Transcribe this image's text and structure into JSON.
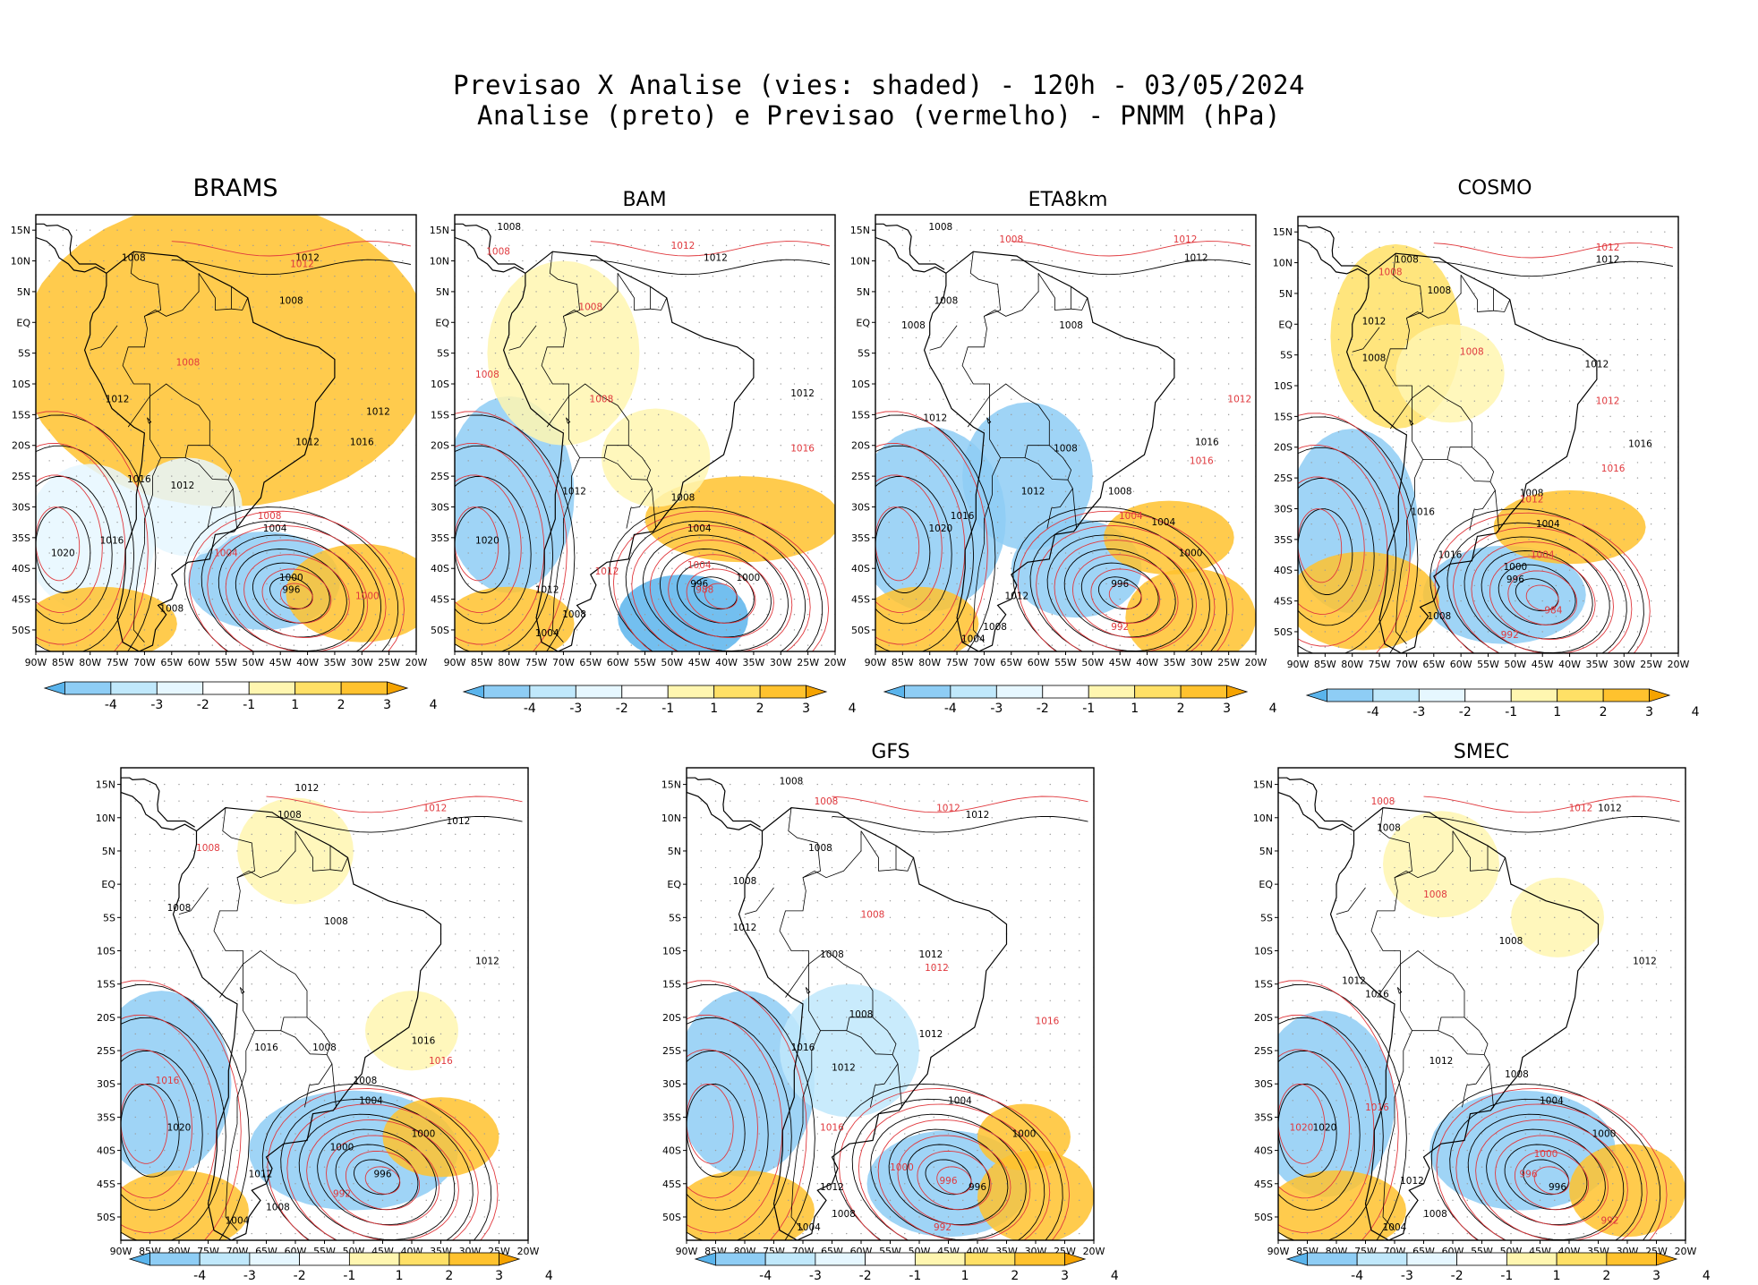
{
  "title": {
    "line1": "Previsao X Analise (vies: shaded) - 120h - 03/05/2024",
    "line2": "Analise (preto) e Previsao (vermelho) - PNMM (hPa)"
  },
  "lat_labels": [
    "15N",
    "10N",
    "5N",
    "EQ",
    "5S",
    "10S",
    "15S",
    "20S",
    "25S",
    "30S",
    "35S",
    "40S",
    "45S",
    "50S"
  ],
  "lon_labels": [
    "90W",
    "85W",
    "80W",
    "75W",
    "70W",
    "65W",
    "60W",
    "55W",
    "50W",
    "45W",
    "40W",
    "35W",
    "30W",
    "25W",
    "20W"
  ],
  "colorbar": {
    "labels": [
      "-4",
      "-3",
      "-2",
      "-1",
      "1",
      "2",
      "3",
      "4"
    ],
    "colors": [
      "#5ab4ec",
      "#8ecdf5",
      "#c0e8fb",
      "#e6f7ff",
      "#ffffff",
      "#fff6b0",
      "#ffe066",
      "#ffc22e",
      "#f5a300"
    ]
  },
  "colors": {
    "analysis": "#000000",
    "forecast": "#e0393e"
  },
  "panels": [
    {
      "model": "BRAMS",
      "labels": [
        {
          "text": "1012",
          "lat": 10,
          "lon": -40,
          "c": "k"
        },
        {
          "text": "1012",
          "lat": 9,
          "lon": -41,
          "c": "r"
        },
        {
          "text": "1008",
          "lat": 10,
          "lon": -72,
          "c": "k"
        },
        {
          "text": "1008",
          "lat": 3,
          "lon": -43,
          "c": "k"
        },
        {
          "text": "1008",
          "lat": -7,
          "lon": -62,
          "c": "r"
        },
        {
          "text": "1012",
          "lat": -13,
          "lon": -75,
          "c": "k"
        },
        {
          "text": "1012",
          "lat": -20,
          "lon": -40,
          "c": "k"
        },
        {
          "text": "1012",
          "lat": -15,
          "lon": -27,
          "c": "k"
        },
        {
          "text": "1016",
          "lat": -20,
          "lon": -30,
          "c": "k"
        },
        {
          "text": "1016",
          "lat": -26,
          "lon": -71,
          "c": "k"
        },
        {
          "text": "1012",
          "lat": -27,
          "lon": -63,
          "c": "k"
        },
        {
          "text": "1008",
          "lat": -32,
          "lon": -47,
          "c": "r"
        },
        {
          "text": "1004",
          "lat": -34,
          "lon": -46,
          "c": "k"
        },
        {
          "text": "1004",
          "lat": -38,
          "lon": -55,
          "c": "r"
        },
        {
          "text": "1020",
          "lat": -38,
          "lon": -85,
          "c": "k"
        },
        {
          "text": "1016",
          "lat": -36,
          "lon": -76,
          "c": "k"
        },
        {
          "text": "1000",
          "lat": -42,
          "lon": -43,
          "c": "k"
        },
        {
          "text": "996",
          "lat": -44,
          "lon": -43,
          "c": "k"
        },
        {
          "text": "1000",
          "lat": -45,
          "lon": -29,
          "c": "r"
        },
        {
          "text": "1008",
          "lat": -47,
          "lon": -65,
          "c": "k"
        }
      ]
    },
    {
      "model": "BAM",
      "labels": [
        {
          "text": "1008",
          "lat": 15,
          "lon": -80,
          "c": "k"
        },
        {
          "text": "1008",
          "lat": 11,
          "lon": -82,
          "c": "r"
        },
        {
          "text": "1012",
          "lat": 12,
          "lon": -48,
          "c": "r"
        },
        {
          "text": "1012",
          "lat": 10,
          "lon": -42,
          "c": "k"
        },
        {
          "text": "1008",
          "lat": 2,
          "lon": -65,
          "c": "r"
        },
        {
          "text": "1008",
          "lat": -9,
          "lon": -84,
          "c": "r"
        },
        {
          "text": "1008",
          "lat": -13,
          "lon": -63,
          "c": "r"
        },
        {
          "text": "1012",
          "lat": -12,
          "lon": -26,
          "c": "k"
        },
        {
          "text": "1016",
          "lat": -21,
          "lon": -26,
          "c": "r"
        },
        {
          "text": "1012",
          "lat": -28,
          "lon": -68,
          "c": "k"
        },
        {
          "text": "1008",
          "lat": -29,
          "lon": -48,
          "c": "k"
        },
        {
          "text": "1004",
          "lat": -34,
          "lon": -45,
          "c": "k"
        },
        {
          "text": "1004",
          "lat": -40,
          "lon": -45,
          "c": "r"
        },
        {
          "text": "1020",
          "lat": -36,
          "lon": -84,
          "c": "k"
        },
        {
          "text": "1012",
          "lat": -41,
          "lon": -62,
          "c": "r"
        },
        {
          "text": "1012",
          "lat": -44,
          "lon": -73,
          "c": "k"
        },
        {
          "text": "1000",
          "lat": -42,
          "lon": -36,
          "c": "k"
        },
        {
          "text": "996",
          "lat": -43,
          "lon": -45,
          "c": "k"
        },
        {
          "text": "988",
          "lat": -44,
          "lon": -44,
          "c": "r"
        },
        {
          "text": "1008",
          "lat": -48,
          "lon": -68,
          "c": "k"
        },
        {
          "text": "1004",
          "lat": -51,
          "lon": -73,
          "c": "k"
        }
      ]
    },
    {
      "model": "ETA8km",
      "labels": [
        {
          "text": "1008",
          "lat": 15,
          "lon": -78,
          "c": "k"
        },
        {
          "text": "1008",
          "lat": 13,
          "lon": -65,
          "c": "r"
        },
        {
          "text": "1012",
          "lat": 13,
          "lon": -33,
          "c": "r"
        },
        {
          "text": "1012",
          "lat": 10,
          "lon": -31,
          "c": "k"
        },
        {
          "text": "1008",
          "lat": 3,
          "lon": -77,
          "c": "k"
        },
        {
          "text": "1008",
          "lat": -1,
          "lon": -83,
          "c": "k"
        },
        {
          "text": "1008",
          "lat": -1,
          "lon": -54,
          "c": "k"
        },
        {
          "text": "1012",
          "lat": -13,
          "lon": -23,
          "c": "r"
        },
        {
          "text": "1012",
          "lat": -16,
          "lon": -79,
          "c": "k"
        },
        {
          "text": "1008",
          "lat": -21,
          "lon": -55,
          "c": "k"
        },
        {
          "text": "1016",
          "lat": -20,
          "lon": -29,
          "c": "k"
        },
        {
          "text": "1016",
          "lat": -23,
          "lon": -30,
          "c": "r"
        },
        {
          "text": "1012",
          "lat": -28,
          "lon": -61,
          "c": "k"
        },
        {
          "text": "1008",
          "lat": -28,
          "lon": -45,
          "c": "k"
        },
        {
          "text": "1004",
          "lat": -32,
          "lon": -43,
          "c": "r"
        },
        {
          "text": "1004",
          "lat": -33,
          "lon": -37,
          "c": "k"
        },
        {
          "text": "1016",
          "lat": -32,
          "lon": -74,
          "c": "k"
        },
        {
          "text": "1020",
          "lat": -34,
          "lon": -78,
          "c": "k"
        },
        {
          "text": "1000",
          "lat": -38,
          "lon": -32,
          "c": "k"
        },
        {
          "text": "996",
          "lat": -43,
          "lon": -45,
          "c": "k"
        },
        {
          "text": "1012",
          "lat": -45,
          "lon": -64,
          "c": "k"
        },
        {
          "text": "1008",
          "lat": -50,
          "lon": -68,
          "c": "k"
        },
        {
          "text": "1004",
          "lat": -52,
          "lon": -72,
          "c": "k"
        },
        {
          "text": "992",
          "lat": -50,
          "lon": -45,
          "c": "r"
        }
      ]
    },
    {
      "model": "COSMO",
      "labels": [
        {
          "text": "1012",
          "lat": 12,
          "lon": -33,
          "c": "r"
        },
        {
          "text": "1012",
          "lat": 10,
          "lon": -33,
          "c": "k"
        },
        {
          "text": "1008",
          "lat": 10,
          "lon": -70,
          "c": "k"
        },
        {
          "text": "1008",
          "lat": 8,
          "lon": -73,
          "c": "r"
        },
        {
          "text": "1008",
          "lat": 5,
          "lon": -64,
          "c": "k"
        },
        {
          "text": "1012",
          "lat": 0,
          "lon": -76,
          "c": "k"
        },
        {
          "text": "1008",
          "lat": -5,
          "lon": -58,
          "c": "r"
        },
        {
          "text": "1008",
          "lat": -6,
          "lon": -76,
          "c": "k"
        },
        {
          "text": "1012",
          "lat": -7,
          "lon": -35,
          "c": "k"
        },
        {
          "text": "1012",
          "lat": -13,
          "lon": -33,
          "c": "r"
        },
        {
          "text": "1016",
          "lat": -20,
          "lon": -27,
          "c": "k"
        },
        {
          "text": "1016",
          "lat": -24,
          "lon": -32,
          "c": "r"
        },
        {
          "text": "1016",
          "lat": -31,
          "lon": -67,
          "c": "k"
        },
        {
          "text": "1008",
          "lat": -28,
          "lon": -47,
          "c": "k"
        },
        {
          "text": "1012",
          "lat": -29,
          "lon": -47,
          "c": "r"
        },
        {
          "text": "1004",
          "lat": -33,
          "lon": -44,
          "c": "k"
        },
        {
          "text": "1004",
          "lat": -38,
          "lon": -45,
          "c": "r"
        },
        {
          "text": "1016",
          "lat": -38,
          "lon": -62,
          "c": "k"
        },
        {
          "text": "1000",
          "lat": -40,
          "lon": -50,
          "c": "k"
        },
        {
          "text": "996",
          "lat": -42,
          "lon": -50,
          "c": "k"
        },
        {
          "text": "984",
          "lat": -47,
          "lon": -43,
          "c": "r"
        },
        {
          "text": "1008",
          "lat": -48,
          "lon": -64,
          "c": "k"
        },
        {
          "text": "992",
          "lat": -51,
          "lon": -51,
          "c": "r"
        }
      ]
    },
    {
      "model": "",
      "labels": [
        {
          "text": "1012",
          "lat": 14,
          "lon": -58,
          "c": "k"
        },
        {
          "text": "1008",
          "lat": 10,
          "lon": -61,
          "c": "k"
        },
        {
          "text": "1008",
          "lat": 5,
          "lon": -75,
          "c": "r"
        },
        {
          "text": "1012",
          "lat": 11,
          "lon": -36,
          "c": "r"
        },
        {
          "text": "1012",
          "lat": 9,
          "lon": -32,
          "c": "k"
        },
        {
          "text": "1008",
          "lat": -4,
          "lon": -80,
          "c": "k"
        },
        {
          "text": "1008",
          "lat": -6,
          "lon": -53,
          "c": "k"
        },
        {
          "text": "1012",
          "lat": -12,
          "lon": -27,
          "c": "k"
        },
        {
          "text": "1016",
          "lat": -24,
          "lon": -38,
          "c": "k"
        },
        {
          "text": "1016",
          "lat": -27,
          "lon": -35,
          "c": "r"
        },
        {
          "text": "1008",
          "lat": -25,
          "lon": -55,
          "c": "k"
        },
        {
          "text": "1016",
          "lat": -25,
          "lon": -65,
          "c": "k"
        },
        {
          "text": "1008",
          "lat": -30,
          "lon": -48,
          "c": "k"
        },
        {
          "text": "1004",
          "lat": -33,
          "lon": -47,
          "c": "k"
        },
        {
          "text": "1016",
          "lat": -30,
          "lon": -82,
          "c": "r"
        },
        {
          "text": "1020",
          "lat": -37,
          "lon": -80,
          "c": "k"
        },
        {
          "text": "1000",
          "lat": -38,
          "lon": -38,
          "c": "k"
        },
        {
          "text": "1000",
          "lat": -40,
          "lon": -52,
          "c": "k"
        },
        {
          "text": "996",
          "lat": -44,
          "lon": -45,
          "c": "k"
        },
        {
          "text": "992",
          "lat": -47,
          "lon": -52,
          "c": "r"
        },
        {
          "text": "1012",
          "lat": -44,
          "lon": -66,
          "c": "k"
        },
        {
          "text": "1008",
          "lat": -49,
          "lon": -63,
          "c": "k"
        },
        {
          "text": "1004",
          "lat": -51,
          "lon": -70,
          "c": "k"
        }
      ]
    },
    {
      "model": "GFS",
      "labels": [
        {
          "text": "1008",
          "lat": 15,
          "lon": -72,
          "c": "k"
        },
        {
          "text": "1008",
          "lat": 12,
          "lon": -66,
          "c": "r"
        },
        {
          "text": "1012",
          "lat": 11,
          "lon": -45,
          "c": "r"
        },
        {
          "text": "1012",
          "lat": 10,
          "lon": -40,
          "c": "k"
        },
        {
          "text": "1008",
          "lat": 5,
          "lon": -67,
          "c": "k"
        },
        {
          "text": "1008",
          "lat": 0,
          "lon": -80,
          "c": "k"
        },
        {
          "text": "1008",
          "lat": -5,
          "lon": -58,
          "c": "r"
        },
        {
          "text": "1012",
          "lat": -7,
          "lon": -80,
          "c": "k"
        },
        {
          "text": "1008",
          "lat": -11,
          "lon": -65,
          "c": "k"
        },
        {
          "text": "1012",
          "lat": -11,
          "lon": -48,
          "c": "k"
        },
        {
          "text": "1012",
          "lat": -13,
          "lon": -47,
          "c": "r"
        },
        {
          "text": "1016",
          "lat": -21,
          "lon": -28,
          "c": "r"
        },
        {
          "text": "1008",
          "lat": -20,
          "lon": -60,
          "c": "k"
        },
        {
          "text": "1012",
          "lat": -23,
          "lon": -48,
          "c": "k"
        },
        {
          "text": "1016",
          "lat": -25,
          "lon": -70,
          "c": "k"
        },
        {
          "text": "1012",
          "lat": -28,
          "lon": -63,
          "c": "k"
        },
        {
          "text": "1004",
          "lat": -33,
          "lon": -43,
          "c": "k"
        },
        {
          "text": "1016",
          "lat": -37,
          "lon": -65,
          "c": "r"
        },
        {
          "text": "1000",
          "lat": -38,
          "lon": -32,
          "c": "k"
        },
        {
          "text": "1000",
          "lat": -43,
          "lon": -53,
          "c": "r"
        },
        {
          "text": "996",
          "lat": -45,
          "lon": -45,
          "c": "r"
        },
        {
          "text": "996",
          "lat": -46,
          "lon": -40,
          "c": "k"
        },
        {
          "text": "1012",
          "lat": -46,
          "lon": -65,
          "c": "k"
        },
        {
          "text": "1008",
          "lat": -50,
          "lon": -63,
          "c": "k"
        },
        {
          "text": "1004",
          "lat": -52,
          "lon": -69,
          "c": "k"
        },
        {
          "text": "992",
          "lat": -52,
          "lon": -46,
          "c": "r"
        }
      ]
    },
    {
      "model": "SMEC",
      "labels": [
        {
          "text": "1012",
          "lat": 11,
          "lon": -38,
          "c": "r"
        },
        {
          "text": "1012",
          "lat": 11,
          "lon": -33,
          "c": "k"
        },
        {
          "text": "1008",
          "lat": 12,
          "lon": -72,
          "c": "r"
        },
        {
          "text": "1008",
          "lat": 8,
          "lon": -71,
          "c": "k"
        },
        {
          "text": "1008",
          "lat": -2,
          "lon": -63,
          "c": "r"
        },
        {
          "text": "1008",
          "lat": -9,
          "lon": -50,
          "c": "k"
        },
        {
          "text": "1012",
          "lat": -12,
          "lon": -27,
          "c": "k"
        },
        {
          "text": "1012",
          "lat": -15,
          "lon": -77,
          "c": "k"
        },
        {
          "text": "1016",
          "lat": -17,
          "lon": -73,
          "c": "k"
        },
        {
          "text": "1012",
          "lat": -27,
          "lon": -62,
          "c": "k"
        },
        {
          "text": "1008",
          "lat": -29,
          "lon": -49,
          "c": "k"
        },
        {
          "text": "1004",
          "lat": -33,
          "lon": -43,
          "c": "k"
        },
        {
          "text": "1016",
          "lat": -34,
          "lon": -73,
          "c": "r"
        },
        {
          "text": "1020",
          "lat": -37,
          "lon": -86,
          "c": "r"
        },
        {
          "text": "1020",
          "lat": -37,
          "lon": -82,
          "c": "k"
        },
        {
          "text": "1000",
          "lat": -38,
          "lon": -34,
          "c": "k"
        },
        {
          "text": "1000",
          "lat": -41,
          "lon": -44,
          "c": "r"
        },
        {
          "text": "996",
          "lat": -44,
          "lon": -47,
          "c": "r"
        },
        {
          "text": "996",
          "lat": -46,
          "lon": -42,
          "c": "k"
        },
        {
          "text": "1012",
          "lat": -45,
          "lon": -67,
          "c": "k"
        },
        {
          "text": "1008",
          "lat": -50,
          "lon": -63,
          "c": "k"
        },
        {
          "text": "1004",
          "lat": -52,
          "lon": -70,
          "c": "k"
        },
        {
          "text": "992",
          "lat": -51,
          "lon": -33,
          "c": "r"
        }
      ]
    }
  ]
}
